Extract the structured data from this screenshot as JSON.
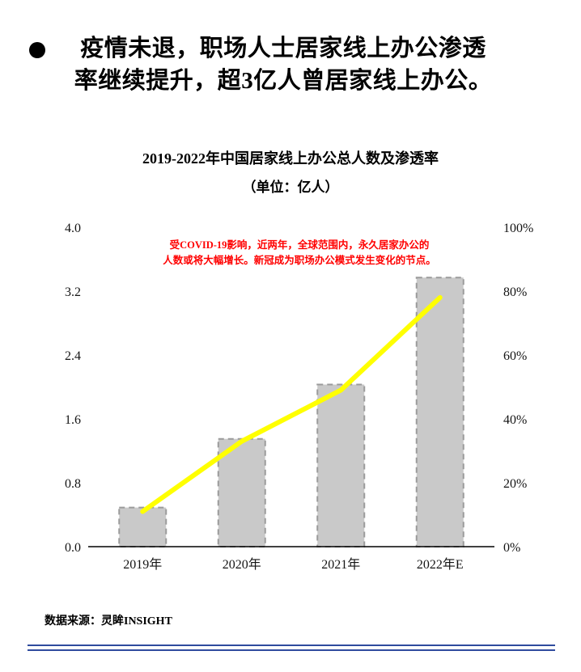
{
  "bullet": {
    "text": "疫情未退，职场人士居家线上办公渗透率继续提升，超3亿人曾居家线上办公。"
  },
  "chart": {
    "title": "2019-2022年中国居家线上办公总人数及渗透率",
    "subtitle": "（单位：亿人）",
    "annotation_line1": "受COVID-19影响，近两年，全球范围内，永久居家办公的",
    "annotation_line2": "人数或将大幅增长。新冠成为职场办公模式发生变化的节点。"
  },
  "chart_data": {
    "type": "bar",
    "subtype": "bar+line-combo",
    "categories": [
      "2019年",
      "2020年",
      "2021年",
      "2022年E"
    ],
    "series": [
      {
        "name": "居家线上办公总人数(亿人)",
        "type": "bar",
        "axis": "left",
        "values": [
          0.49,
          1.35,
          2.03,
          3.37
        ]
      },
      {
        "name": "渗透率",
        "type": "line",
        "axis": "right",
        "values": [
          11,
          33,
          49,
          78
        ]
      }
    ],
    "title": "2019-2022年中国居家线上办公总人数及渗透率",
    "ylabel_left": "亿人",
    "ylabel_right": "渗透率%",
    "left_axis": {
      "min": 0,
      "max": 4,
      "ticks": [
        "4.0",
        "3.2",
        "2.4",
        "1.6",
        "0.8",
        "0.0"
      ]
    },
    "right_axis": {
      "min": 0,
      "max": 100,
      "ticks": [
        "100%",
        "80%",
        "60%",
        "40%",
        "20%",
        "0%"
      ]
    },
    "grid": false,
    "legend": "none",
    "bar_color": "#c9c9c9",
    "bar_border_color": "#9b9b9b",
    "line_color": "#ffff00",
    "axis_color": "#000000"
  },
  "footer": {
    "source": "数据来源：灵眸INSIGHT"
  }
}
